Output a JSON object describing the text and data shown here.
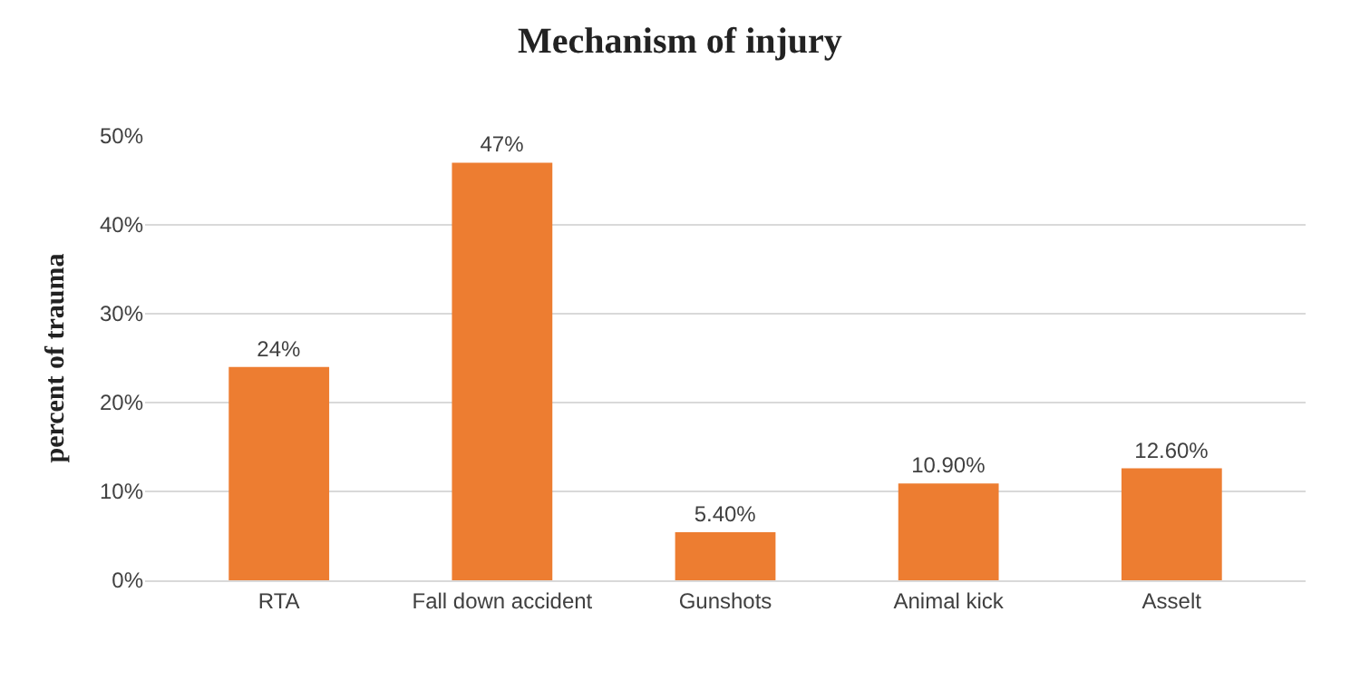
{
  "chart_data": {
    "type": "bar",
    "title": "Mechanism of injury",
    "ylabel": "percent of trauma",
    "categories": [
      "RTA",
      "Fall down accident",
      "Gunshots",
      "Animal kick",
      "Asselt"
    ],
    "values": [
      24,
      47,
      5.4,
      10.9,
      12.6
    ],
    "value_labels": [
      "24%",
      "47%",
      "5.40%",
      "10.90%",
      "12.60%"
    ],
    "color": "#ed7d31",
    "ylim": [
      0,
      50
    ],
    "yticks": [
      {
        "value": 0,
        "label": "0%"
      },
      {
        "value": 10,
        "label": "10%"
      },
      {
        "value": 20,
        "label": "20%"
      },
      {
        "value": 30,
        "label": "30%"
      },
      {
        "value": 40,
        "label": "40%"
      },
      {
        "value": 50,
        "label": "50%"
      }
    ],
    "grid": "y"
  }
}
